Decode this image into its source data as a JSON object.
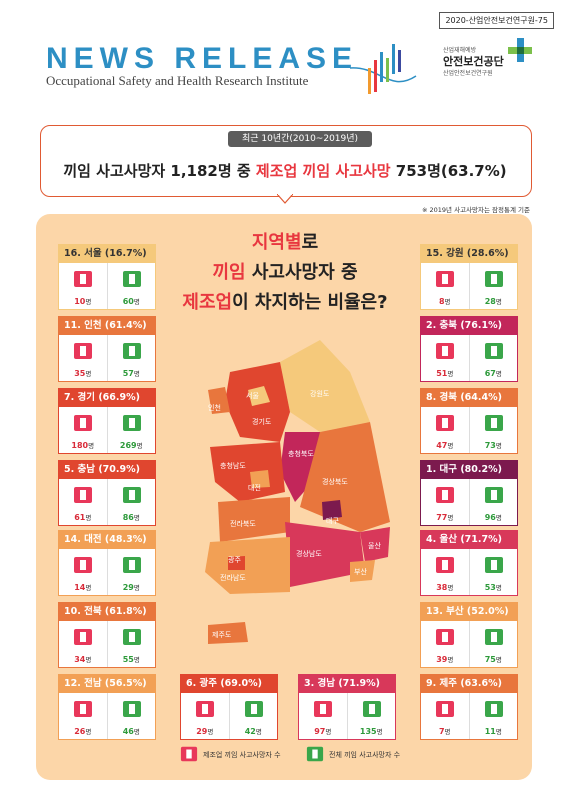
{
  "doc_code": "2020-산업안전보건연구원-75",
  "header": {
    "title": "NEWS RELEASE",
    "subtitle": "Occupational Safety and Health Research Institute",
    "org_small": "산업재해예방",
    "org_name": "안전보건공단",
    "org_institute": "산업안전보건연구원"
  },
  "headline": {
    "period": "최근 10년간(2010~2019년)",
    "pre": "끼임 사고사망자 1,182명 중 ",
    "highlight": "제조업 끼임 사고사망",
    "post": " 753명(63.7%)"
  },
  "note": "※ 2019년 사고사망자는 잠정통계 기준",
  "question": {
    "l1_red": "지역별",
    "l1_rest": "로",
    "l2_red": "끼임",
    "l2_rest": " 사고사망자 중",
    "l3_red": "제조업",
    "l3_rest": "이 차지하는 비율은?"
  },
  "unit": "명",
  "regions": [
    {
      "id": "seoul",
      "label": "16. 서울 (16.7%)",
      "mfg": "10",
      "total": "60",
      "color": "#f5c97b",
      "textdark": true
    },
    {
      "id": "incheon",
      "label": "11. 인천 (61.4%)",
      "mfg": "35",
      "total": "57",
      "color": "#e8763d",
      "textdark": false
    },
    {
      "id": "gyeonggi",
      "label": "7. 경기 (66.9%)",
      "mfg": "180",
      "total": "269",
      "color": "#e0462f",
      "textdark": false
    },
    {
      "id": "chungnam",
      "label": "5. 충남 (70.9%)",
      "mfg": "61",
      "total": "86",
      "color": "#e0462f",
      "textdark": false
    },
    {
      "id": "daejeon",
      "label": "14. 대전 (48.3%)",
      "mfg": "14",
      "total": "29",
      "color": "#f2a055",
      "textdark": false
    },
    {
      "id": "jeonbuk",
      "label": "10. 전북 (61.8%)",
      "mfg": "34",
      "total": "55",
      "color": "#e8763d",
      "textdark": false
    },
    {
      "id": "jeonnam",
      "label": "12. 전남 (56.5%)",
      "mfg": "26",
      "total": "46",
      "color": "#f2a055",
      "textdark": false
    },
    {
      "id": "gwangju",
      "label": "6. 광주 (69.0%)",
      "mfg": "29",
      "total": "42",
      "color": "#e0462f",
      "textdark": false
    },
    {
      "id": "gyeongnam",
      "label": "3. 경남 (71.9%)",
      "mfg": "97",
      "total": "135",
      "color": "#d8385a",
      "textdark": false
    },
    {
      "id": "jeju",
      "label": "9. 제주 (63.6%)",
      "mfg": "7",
      "total": "11",
      "color": "#e8763d",
      "textdark": false
    },
    {
      "id": "gangwon",
      "label": "15. 강원 (28.6%)",
      "mfg": "8",
      "total": "28",
      "color": "#f5c97b",
      "textdark": true
    },
    {
      "id": "chungbuk",
      "label": "2. 충북 (76.1%)",
      "mfg": "51",
      "total": "67",
      "color": "#c2265a",
      "textdark": false
    },
    {
      "id": "gyeongbuk",
      "label": "8. 경북 (64.4%)",
      "mfg": "47",
      "total": "73",
      "color": "#e8763d",
      "textdark": false
    },
    {
      "id": "daegu",
      "label": "1. 대구 (80.2%)",
      "mfg": "77",
      "total": "96",
      "color": "#7c1a4e",
      "textdark": false
    },
    {
      "id": "ulsan",
      "label": "4. 울산 (71.7%)",
      "mfg": "38",
      "total": "53",
      "color": "#d8385a",
      "textdark": false
    },
    {
      "id": "busan",
      "label": "13. 부산 (52.0%)",
      "mfg": "39",
      "total": "75",
      "color": "#f2a055",
      "textdark": false
    }
  ],
  "map_labels": {
    "seoul": "서울",
    "incheon": "인천",
    "gyeonggi": "경기도",
    "gangwon": "강원도",
    "chungbuk": "충청북도",
    "chungnam": "충청남도",
    "daejeon": "대전",
    "gyeongbuk": "경상북도",
    "daegu": "대구",
    "jeonbuk": "전라북도",
    "gyeongnam": "경상남도",
    "ulsan": "울산",
    "gwangju": "광주",
    "jeonnam": "전라남도",
    "busan": "부산",
    "jeju": "제주도"
  },
  "legend": {
    "mfg": "제조업 끼임 사고사망자 수",
    "total": "전체 끼임 사고사망자 수"
  },
  "colors": {
    "accent_red": "#e8373f",
    "panel": "#fcd6a8",
    "mfg_icon": "#e8375a",
    "total_icon": "#3aa64a"
  }
}
